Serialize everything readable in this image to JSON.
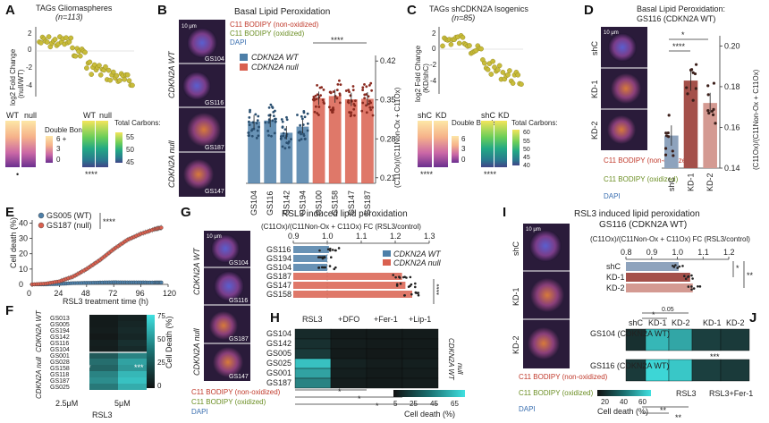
{
  "colors": {
    "wt": "#4d7fa8",
    "null": "#d9604f",
    "kd1": "#a4504a",
    "kd2": "#d49a92",
    "shc": "#8ea3bd",
    "teal": "#2ec4c4",
    "dots": "#c8bc3a",
    "micro_bg": "#2a1b3a"
  },
  "panels": {
    "A": {
      "label": "A",
      "title": "TAGs Gliomaspheres",
      "n": "(n=113)",
      "ylabel_main": "log2 Fold Change",
      "ylabel_sub": "(null/WT)",
      "yticks": [
        "2",
        "0",
        "-2",
        "-4"
      ],
      "heat_cols": [
        "WT",
        "null"
      ],
      "legend1_title": "Double Bonds:",
      "legend1_ticks": [
        "6 +",
        "3",
        "0"
      ],
      "legend2_title": "Total Carbons:",
      "legend2_ticks": [
        "55",
        "50",
        "45"
      ],
      "sig1": "•",
      "sig2": "****"
    },
    "B": {
      "label": "B",
      "title": "Basal Lipid Peroxidation",
      "stain_non_ox": "C11 BODIPY (non-oxidized)",
      "stain_ox": "C11 BODIPY (oxidized)",
      "stain_dapi": "DAPI",
      "scalebar": "10 μm",
      "img_labels": [
        "GS104",
        "GS116",
        "GS187",
        "GS147"
      ],
      "row_wt": "CDKN2A WT",
      "row_null": "CDKN2A null",
      "legend_wt": "CDKN2A WT",
      "legend_null": "CDKN2A null",
      "ylabel": "(C11Ox)/(C11Non-Ox + C11Ox)",
      "sig": "****"
    },
    "C": {
      "label": "C",
      "title": "TAGs shCDKN2A Isogenics",
      "n": "(n=85)",
      "ylabel_main": "log2 Fold Change",
      "ylabel_sub": "(KD/shC)",
      "yticks": [
        "2",
        "0",
        "-2",
        "-4"
      ],
      "heat_cols": [
        "shC",
        "KD"
      ],
      "legend1_title": "Double Bonds:",
      "legend1_ticks": [
        "6",
        "3",
        "0"
      ],
      "legend2_title": "Total Carbons:",
      "legend2_ticks": [
        "60",
        "55",
        "50",
        "45",
        "40"
      ],
      "sig1": "****",
      "sig2": "****"
    },
    "D": {
      "label": "D",
      "title1": "Basal Lipid Peroxidation:",
      "title2": "GS116 (CDKN2A WT)",
      "scalebar": "10 μm",
      "rows": [
        "shC",
        "KD-1",
        "KD-2"
      ],
      "stain_non_ox": "C11 BODIPY (non-oxidized)",
      "stain_ox": "C11 BODIPY (oxidized)",
      "stain_dapi": "DAPI",
      "ylabel": "(C11Ox)/(C11Non-Ox + C11Ox)",
      "sig_top": "*",
      "sig_mid": "****"
    },
    "E": {
      "label": "E",
      "legend_wt": "GS005 (WT)",
      "legend_null": "GS187 (null)",
      "sig": "****",
      "ylabel": "Cell death (%)",
      "xlabel": "RSL3 treatment time (h)"
    },
    "F": {
      "label": "F",
      "rows": [
        "GS013",
        "GS005",
        "GS194",
        "GS142",
        "GS116",
        "GS104",
        "GS001",
        "GS028",
        "GS158",
        "GS118",
        "GS187",
        "GS025"
      ],
      "group_wt": "CDKN2A WT",
      "group_null": "CDKN2A null",
      "cols": [
        "2.5μM",
        "5μM"
      ],
      "xlabel": "RSL3",
      "cbar_label": "Cell Death (%)",
      "cbar_ticks": [
        "75",
        "50",
        "25",
        "0"
      ],
      "sig1": "*",
      "sig2": "***"
    },
    "G": {
      "label": "G",
      "title": "RSL3 induced lipid peroxidation",
      "axis_label": "(C11Ox)/(C11Non-Ox + C11Ox) FC (RSL3/control)",
      "scalebar": "10 μm",
      "img_labels": [
        "GS104",
        "GS116",
        "GS187",
        "GS147"
      ],
      "row_wt": "CDKN2A WT",
      "row_null": "CDKN2A null",
      "legend_wt": "CDKN2A WT",
      "legend_null": "CDKN2A null",
      "stain_non_ox": "C11 BODIPY (non-oxidized)",
      "stain_ox": "C11 BODIPY (oxidized)",
      "stain_dapi": "DAPI",
      "sig": "****"
    },
    "H": {
      "label": "H",
      "cols": [
        "RSL3",
        "+DFO",
        "+Fer-1",
        "+Lip-1"
      ],
      "rows": [
        "GS104",
        "GS142",
        "GS005",
        "GS025",
        "GS001",
        "GS187"
      ],
      "group_wt": "CDKN2A WT",
      "group_null": "null",
      "cbar_ticks": [
        "5",
        "25",
        "45",
        "65"
      ],
      "cbar_label": "Cell death (%)"
    },
    "I": {
      "label": "I",
      "title1": "RSL3 induced lipid peroxidation",
      "title2": "GS116 (CDKN2A WT)",
      "axis_label": "(C11Ox)/(C11Non-Ox + C11Ox) FC (RSL3/control)",
      "scalebar": "10 μm",
      "rows": [
        "shC",
        "KD-1",
        "KD-2"
      ],
      "stain_non_ox": "C11 BODIPY (non-oxidized)",
      "stain_ox": "C11 BODIPY (oxidized)",
      "stain_dapi": "DAPI",
      "sig1": "*",
      "sig2": "**"
    },
    "J": {
      "label": "J",
      "cols": [
        "shC",
        "KD-1",
        "KD-2",
        "KD-1",
        "KD-2"
      ],
      "rows": [
        "GS104 (CDKN2A WT)",
        "GS116 (CDKN2A WT)"
      ],
      "group1": "RSL3",
      "group2": "RSL3+Fer-1",
      "cbar_ticks": [
        "20",
        "40",
        "60"
      ],
      "cbar_label": "Cell death (%)",
      "sig_top": "0.05",
      "sig_a": "*",
      "sig_b": "***",
      "sig_c": "**"
    }
  },
  "chart_data": [
    {
      "id": "B",
      "type": "bar",
      "categories": [
        "GS104",
        "GS116",
        "GS142",
        "GS194",
        "GS100",
        "GS158",
        "GS147",
        "GS187"
      ],
      "values": [
        0.311,
        0.313,
        0.291,
        0.302,
        0.353,
        0.357,
        0.351,
        0.352
      ],
      "groups": [
        "WT",
        "WT",
        "WT",
        "WT",
        "null",
        "null",
        "null",
        "null"
      ],
      "ylabel": "(C11Ox)/(C11Non-Ox + C11Ox)",
      "yticks": [
        0.21,
        0.28,
        0.35,
        0.42
      ],
      "ylim": [
        0.2,
        0.43
      ]
    },
    {
      "id": "D",
      "type": "bar",
      "categories": [
        "shC",
        "KD-1",
        "KD-2"
      ],
      "values": [
        0.156,
        0.183,
        0.172
      ],
      "yticks": [
        0.14,
        0.16,
        0.18,
        0.2
      ],
      "ylim": [
        0.14,
        0.205
      ]
    },
    {
      "id": "E",
      "type": "line",
      "x": [
        0,
        12,
        24,
        36,
        48,
        60,
        72,
        84,
        96,
        108,
        114
      ],
      "series": [
        {
          "name": "GS005 (WT)",
          "values": [
            0,
            0,
            0.3,
            0.8,
            1.0,
            1.2,
            1.4,
            1.3,
            1.3,
            1.2,
            1.2
          ]
        },
        {
          "name": "GS187 (null)",
          "values": [
            0,
            0.5,
            2,
            5,
            10,
            16,
            23,
            29,
            33,
            36,
            37
          ]
        }
      ],
      "xticks": [
        0,
        24,
        48,
        72,
        96,
        120
      ],
      "yticks": [
        0,
        10,
        20,
        30,
        40
      ],
      "xlim": [
        0,
        120
      ],
      "ylim": [
        0,
        42
      ]
    },
    {
      "id": "G",
      "type": "bar",
      "categories": [
        "GS116",
        "GS194",
        "GS104",
        "GS187",
        "GS147",
        "GS158"
      ],
      "values": [
        1.005,
        1.0,
        1.0,
        1.22,
        1.23,
        1.25
      ],
      "groups": [
        "WT",
        "WT",
        "WT",
        "null",
        "null",
        "null"
      ],
      "xticks": [
        0.9,
        1.0,
        1.1,
        1.2,
        1.3
      ],
      "xlim": [
        0.9,
        1.3
      ]
    },
    {
      "id": "I",
      "type": "bar",
      "categories": [
        "shC",
        "KD-1",
        "KD-2"
      ],
      "values": [
        1.005,
        1.05,
        1.06
      ],
      "xticks": [
        0.8,
        0.9,
        1.0,
        1.1,
        1.2
      ],
      "xlim": [
        0.8,
        1.2
      ]
    }
  ]
}
